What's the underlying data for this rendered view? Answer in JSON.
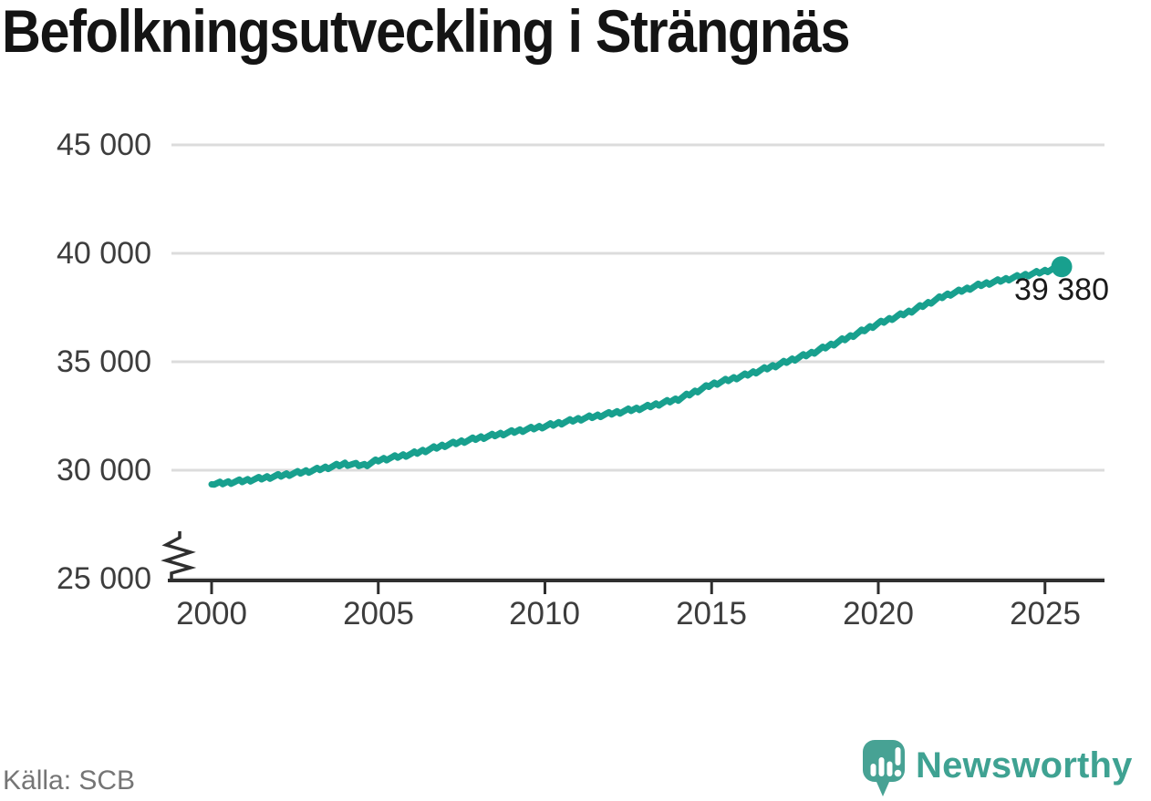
{
  "title": "Befolkningsutveckling i Strängnäs",
  "footer": {
    "source": "Källa: SCB",
    "brand": "Newsworthy"
  },
  "colors": {
    "line": "#18a08e",
    "grid": "#dcdcdc",
    "axis": "#2f2f2f",
    "logo_teal": "#47a294",
    "brand_text": "#3fa292"
  },
  "chart_data": {
    "type": "line",
    "title": "Befolkningsutveckling i Strängnäs",
    "xlabel": "",
    "ylabel": "",
    "ylim": [
      25000,
      45000
    ],
    "xlim": [
      2000,
      2027
    ],
    "grid": "horizontal",
    "axis_break_at_bottom": true,
    "x_ticks": [
      2000,
      2005,
      2010,
      2015,
      2020,
      2025
    ],
    "x_tick_labels": [
      "2000",
      "2005",
      "2010",
      "2015",
      "2020",
      "2025"
    ],
    "y_ticks": [
      25000,
      30000,
      35000,
      40000,
      45000
    ],
    "y_tick_labels": [
      "25 000",
      "30 000",
      "35 000",
      "40 000",
      "45 000"
    ],
    "end_label": "39 380",
    "end_value": 39380,
    "end_year": 2025.5,
    "points": [
      [
        2000,
        29350
      ],
      [
        2001,
        29520
      ],
      [
        2002,
        29740
      ],
      [
        2003,
        29980
      ],
      [
        2004,
        30290
      ],
      [
        2004.6,
        30230
      ],
      [
        2005,
        30460
      ],
      [
        2006,
        30750
      ],
      [
        2007,
        31150
      ],
      [
        2008,
        31480
      ],
      [
        2009,
        31760
      ],
      [
        2010,
        32030
      ],
      [
        2011,
        32350
      ],
      [
        2012,
        32620
      ],
      [
        2013,
        32900
      ],
      [
        2014,
        33280
      ],
      [
        2015,
        33950
      ],
      [
        2016,
        34380
      ],
      [
        2017,
        34870
      ],
      [
        2018,
        35400
      ],
      [
        2019,
        36050
      ],
      [
        2020,
        36760
      ],
      [
        2021,
        37350
      ],
      [
        2022,
        38050
      ],
      [
        2023,
        38520
      ],
      [
        2024,
        38860
      ],
      [
        2025,
        39180
      ],
      [
        2025.5,
        39380
      ]
    ]
  }
}
